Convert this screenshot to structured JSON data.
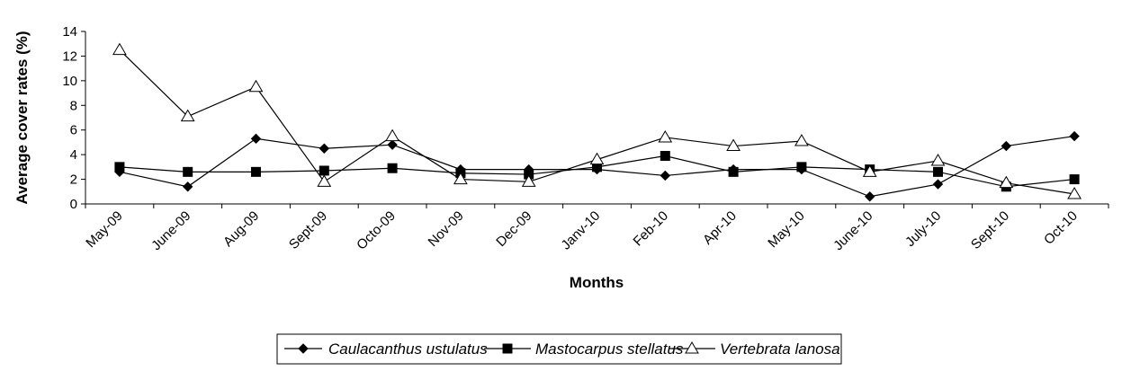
{
  "chart_data": {
    "type": "line",
    "title": "",
    "xlabel": "Months",
    "ylabel": "Average cover rates (%)",
    "ylim": [
      0,
      14
    ],
    "yticks": [
      0,
      2,
      4,
      6,
      8,
      10,
      12,
      14
    ],
    "grid": false,
    "legend_position": "bottom",
    "categories": [
      "May-09",
      "June-09",
      "Aug-09",
      "Sept-09",
      "Octo-09",
      "Nov-09",
      "Dec-09",
      "Janv-10",
      "Feb-10",
      "Apr-10",
      "May-10",
      "June-10",
      "July-10",
      "Sept-10",
      "Oct-10"
    ],
    "series": [
      {
        "name": "Caulacanthus ustulatus",
        "marker": "diamond-filled",
        "values": [
          2.6,
          1.4,
          5.3,
          4.5,
          4.8,
          2.8,
          2.8,
          2.8,
          2.3,
          2.8,
          2.8,
          0.6,
          1.6,
          4.7,
          5.5
        ]
      },
      {
        "name": "Mastocarpus stellatus",
        "marker": "square-filled",
        "values": [
          3.0,
          2.6,
          2.6,
          2.7,
          2.9,
          2.5,
          2.4,
          3.0,
          3.9,
          2.6,
          3.0,
          2.8,
          2.6,
          1.4,
          2.0
        ]
      },
      {
        "name": "Vertebrata lanosa",
        "marker": "triangle-open",
        "values": [
          12.5,
          7.1,
          9.5,
          1.8,
          5.5,
          2.0,
          1.8,
          3.6,
          5.4,
          4.7,
          5.1,
          2.6,
          3.5,
          1.7,
          0.8
        ]
      }
    ]
  }
}
